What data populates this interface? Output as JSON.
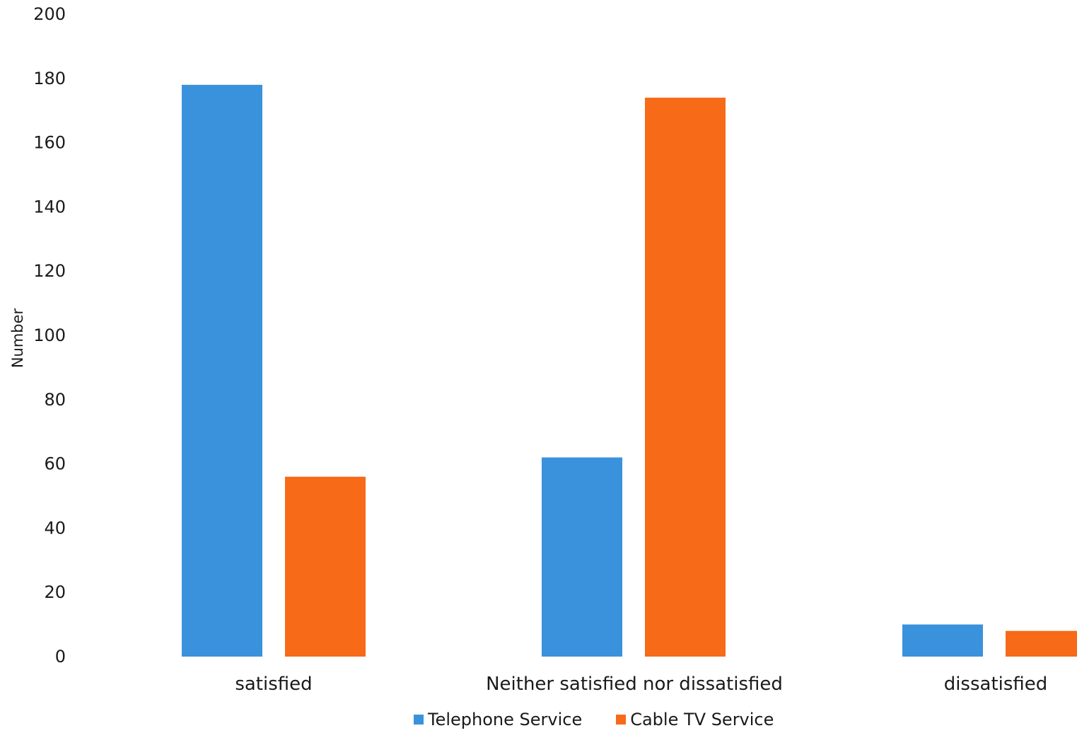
{
  "chart_data": {
    "type": "bar",
    "title": "",
    "xlabel": "",
    "ylabel": "Number",
    "ylim": [
      0,
      200
    ],
    "yticks": [
      0,
      20,
      40,
      60,
      80,
      100,
      120,
      140,
      160,
      180,
      200
    ],
    "grid": false,
    "legend_position": "bottom",
    "categories": [
      "satisfied",
      "Neither satisfied nor dissatisfied",
      "dissatisfied"
    ],
    "series": [
      {
        "name": "Telephone Service",
        "color": "#3a92dc",
        "values": [
          178,
          62,
          10
        ]
      },
      {
        "name": "Cable TV Service",
        "color": "#f76a18",
        "values": [
          56,
          174,
          8
        ]
      }
    ]
  }
}
